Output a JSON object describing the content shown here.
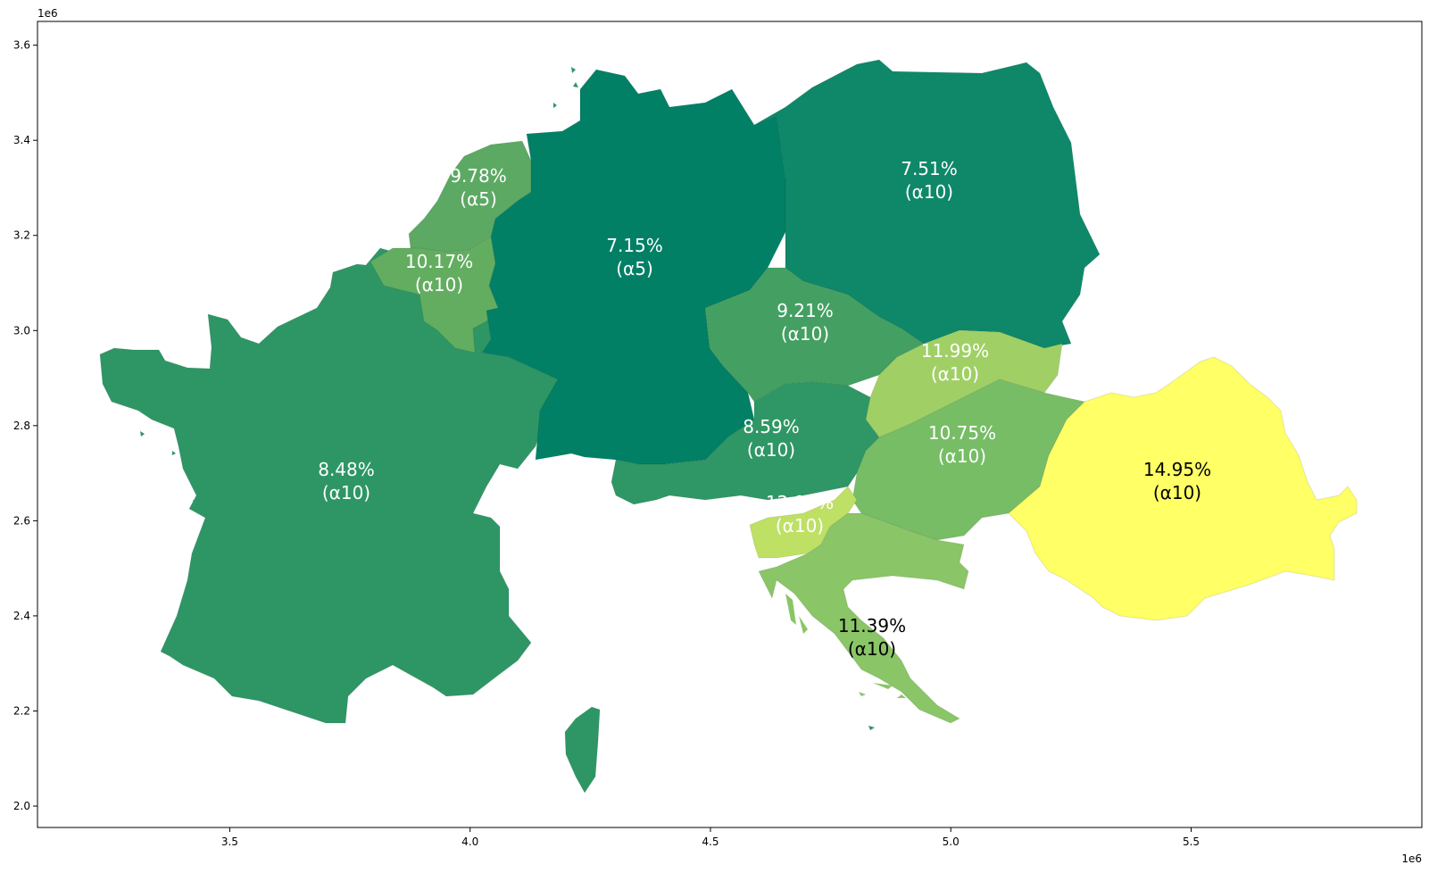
{
  "map": {
    "x_axis": {
      "ticks": [
        "3.5",
        "4.0",
        "4.5",
        "5.0",
        "5.5"
      ],
      "tick_values": [
        3.5,
        4.0,
        4.5,
        5.0,
        5.5
      ],
      "offset": "1e6",
      "range": [
        3.1,
        5.98
      ]
    },
    "y_axis": {
      "ticks": [
        "2.0",
        "2.2",
        "2.4",
        "2.6",
        "2.8",
        "3.0",
        "3.2",
        "3.4",
        "3.6"
      ],
      "tick_values": [
        2.0,
        2.2,
        2.4,
        2.6,
        2.8,
        3.0,
        3.2,
        3.4,
        3.6
      ],
      "offset": "1e6",
      "range": [
        1.955,
        3.65
      ]
    },
    "colormap": "summer_r",
    "regions": [
      {
        "id": "france",
        "pct": "8.48%",
        "note": "(α10)",
        "color": "#2e9665",
        "text_color": "#ffffff"
      },
      {
        "id": "netherlands",
        "pct": "9.78%",
        "note": "(α5)",
        "color": "#5ca963",
        "text_color": "#ffffff"
      },
      {
        "id": "belgium",
        "pct": "10.17%",
        "note": "(α10)",
        "color": "#63ad60",
        "text_color": "#ffffff"
      },
      {
        "id": "germany",
        "pct": "7.15%",
        "note": "(α5)",
        "color": "#018066",
        "text_color": "#ffffff"
      },
      {
        "id": "poland",
        "pct": "7.51%",
        "note": "(α10)",
        "color": "#0e8869",
        "text_color": "#ffffff"
      },
      {
        "id": "czechia",
        "pct": "9.21%",
        "note": "(α10)",
        "color": "#44a062",
        "text_color": "#ffffff"
      },
      {
        "id": "austria",
        "pct": "8.59%",
        "note": "(α10)",
        "color": "#2f9765",
        "text_color": "#ffffff"
      },
      {
        "id": "slovakia",
        "pct": "11.99%",
        "note": "(α10)",
        "color": "#a0d065",
        "text_color": "#ffffff"
      },
      {
        "id": "hungary",
        "pct": "10.75%",
        "note": "(α10)",
        "color": "#77bd66",
        "text_color": "#ffffff"
      },
      {
        "id": "slovenia",
        "pct": "12.95%",
        "note": "(α10)",
        "color": "#bee064",
        "text_color": "#ffffff"
      },
      {
        "id": "croatia",
        "pct": "11.39%",
        "note": "(α10)",
        "color": "#8ac567",
        "text_color": "#000000"
      },
      {
        "id": "romania",
        "pct": "14.95%",
        "note": "(α10)",
        "color": "#ffff66",
        "text_color": "#000000"
      }
    ]
  }
}
